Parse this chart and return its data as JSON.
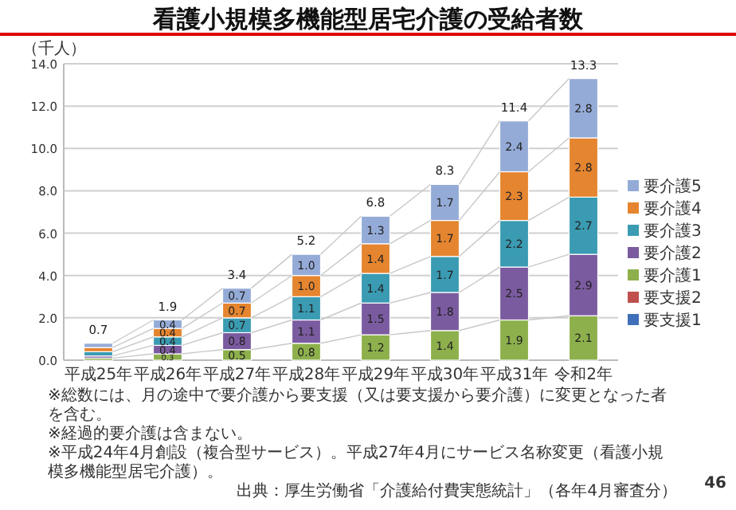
{
  "chart_data": {
    "type": "bar",
    "title": "看護小規模多機能型居宅介護の受給者数",
    "ylabel": "（千人）",
    "categories": [
      "平成25年",
      "平成26年",
      "平成27年",
      "平成28年",
      "平成29年",
      "平成30年",
      "平成31年",
      "令和2年"
    ],
    "stacked": true,
    "grid": "y",
    "legend": "right",
    "ylim": [
      0,
      14
    ],
    "yticks": [
      {
        "value": 0,
        "label": "0.0"
      },
      {
        "value": 2,
        "label": "2.0"
      },
      {
        "value": 4,
        "label": "4.0"
      },
      {
        "value": 6,
        "label": "6.0"
      },
      {
        "value": 8,
        "label": "8.0"
      },
      {
        "value": 10,
        "label": "10.0"
      },
      {
        "value": 12,
        "label": "12.0"
      },
      {
        "value": 14,
        "label": "14.0"
      }
    ],
    "series": [
      {
        "name": "要支援1",
        "color": "#3f6fb8",
        "values": [
          null,
          null,
          null,
          null,
          null,
          null,
          null,
          null
        ]
      },
      {
        "name": "要支援2",
        "color": "#c0504d",
        "values": [
          null,
          null,
          null,
          null,
          null,
          null,
          null,
          null
        ]
      },
      {
        "name": "要介護1",
        "color": "#8db04c",
        "values": [
          0.1,
          0.3,
          0.5,
          0.8,
          1.2,
          1.4,
          1.9,
          2.1
        ],
        "value_labels": [
          null,
          "0.3",
          "0.5",
          "0.8",
          "1.2",
          "1.4",
          "1.9",
          "2.1"
        ]
      },
      {
        "name": "要介護2",
        "color": "#7b5ba0",
        "values": [
          0.1,
          0.4,
          0.8,
          1.1,
          1.5,
          1.8,
          2.5,
          2.9
        ],
        "value_labels": [
          null,
          "0.4",
          "0.8",
          "1.1",
          "1.5",
          "1.8",
          "2.5",
          "2.9"
        ]
      },
      {
        "name": "要介護3",
        "color": "#3a9bb2",
        "values": [
          0.2,
          0.4,
          0.7,
          1.1,
          1.4,
          1.7,
          2.2,
          2.7
        ],
        "value_labels": [
          null,
          "0.4",
          "0.7",
          "1.1",
          "1.4",
          "1.7",
          "2.2",
          "2.7"
        ]
      },
      {
        "name": "要介護4",
        "color": "#e5852f",
        "values": [
          0.2,
          0.4,
          0.7,
          1.0,
          1.4,
          1.7,
          2.3,
          2.8
        ],
        "value_labels": [
          null,
          "0.4",
          "0.7",
          "1.0",
          "1.4",
          "1.7",
          "2.3",
          "2.8"
        ]
      },
      {
        "name": "要介護5",
        "color": "#95abd7",
        "values": [
          0.2,
          0.4,
          0.7,
          1.0,
          1.3,
          1.7,
          2.4,
          2.8
        ],
        "value_labels": [
          null,
          "0.4",
          "0.7",
          "1.0",
          "1.3",
          "1.7",
          "2.4",
          "2.8"
        ]
      }
    ],
    "totals": [
      "0.7",
      "1.9",
      "3.4",
      "5.2",
      "6.8",
      "8.3",
      "11.4",
      "13.3"
    ],
    "annotations": [
      "※総数には、月の途中で要介護から要支援（又は要支援から要介護）に変更となった者を含む。",
      "※経過的要介護は含まない。",
      "※平成24年4月創設（複合型サービス）。平成27年4月にサービス名称変更（看護小規模多機能型居宅介護）。",
      "出典：厚生労働省「介護給付費実態統計」（各年4月審査分）",
      "46"
    ]
  }
}
